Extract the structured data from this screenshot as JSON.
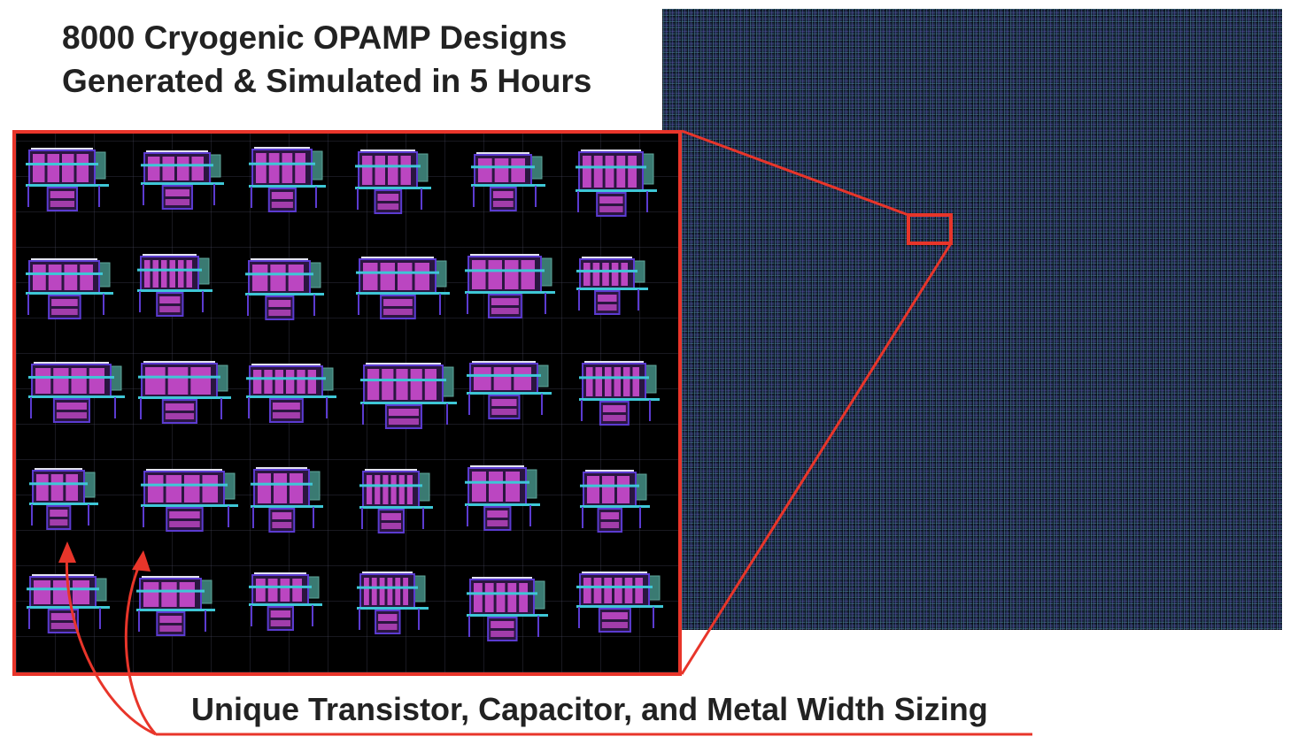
{
  "title": {
    "line1": "8000 Cryogenic OPAMP Designs",
    "line2": "Generated & Simulated in 5 Hours"
  },
  "caption": "Unique Transistor, Capacitor, and Metal Width Sizing",
  "colors": {
    "accent_red": "#e8352a",
    "wafer_blue": "#1c2a45",
    "layout_magenta": "#d54fd8",
    "layout_cyan": "#3ec7d6",
    "layout_teal": "#3a7a72",
    "layout_purple": "#5b3bd0"
  },
  "layout_grid": {
    "rows": 5,
    "cols": 6,
    "total_designs": 30
  }
}
